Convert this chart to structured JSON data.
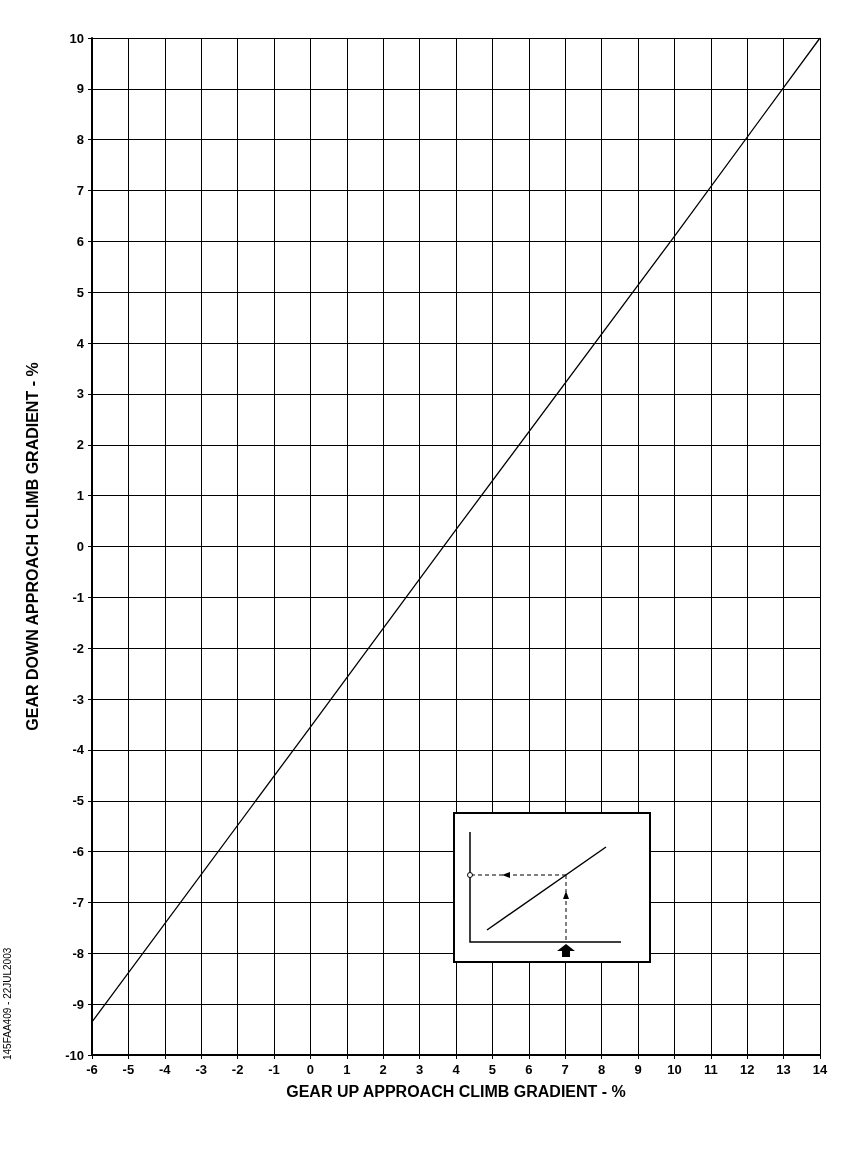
{
  "chart_data": {
    "type": "line",
    "xlabel": "GEAR UP APPROACH CLIMB GRADIENT - %",
    "ylabel": "GEAR DOWN APPROACH CLIMB GRADIENT - %",
    "x": [
      -6,
      0,
      4,
      10,
      14
    ],
    "series": [
      {
        "color": "#000000",
        "values": [
          -9.35,
          -3.55,
          0.33,
          6.1,
          10
        ]
      }
    ],
    "xlim": [
      -6,
      14
    ],
    "xticks": [
      -6,
      -5,
      -4,
      -3,
      -2,
      -1,
      0,
      1,
      2,
      3,
      4,
      5,
      6,
      7,
      8,
      9,
      10,
      11,
      12,
      13,
      14
    ],
    "ylim": [
      -10,
      10
    ],
    "yticks": [
      -10,
      -9,
      -8,
      -7,
      -6,
      -5,
      -4,
      -3,
      -2,
      -1,
      0,
      1,
      2,
      3,
      4,
      5,
      6,
      7,
      8,
      9,
      10
    ],
    "grid": true,
    "marker": "none",
    "line_style": "solid",
    "annotations": [
      "145FAA409 - 22JUL2003"
    ]
  }
}
